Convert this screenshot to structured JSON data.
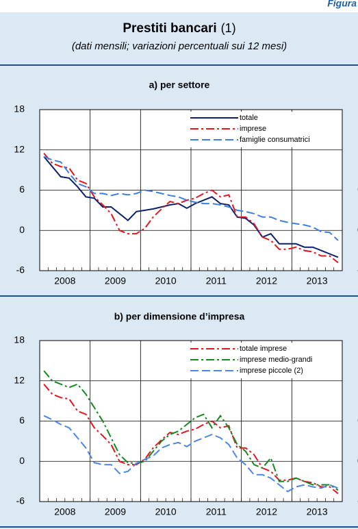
{
  "figure_label": "Figura",
  "title": "Prestiti bancari",
  "title_note": "(1)",
  "subtitle": "(dati mensili; variazioni percentuali sui 12 mesi)",
  "chart_data": [
    {
      "type": "line",
      "title": "a) per settore",
      "categories": [
        null,
        null,
        null,
        "2008",
        null,
        null,
        null,
        null,
        null,
        "2009",
        null,
        null,
        null,
        null,
        null,
        "2010",
        null,
        null,
        null,
        null,
        null,
        "2011",
        null,
        null,
        null,
        null,
        null,
        "2012",
        null,
        null,
        null,
        null,
        null,
        "2013",
        null,
        null
      ],
      "series": [
        {
          "name": "totale",
          "color": "#0b1f6e",
          "style": "solid",
          "values": [
            11,
            9.5,
            8,
            7.8,
            6.5,
            5,
            4.8,
            3.5,
            3.5,
            2.5,
            1.5,
            2.8,
            3,
            3.2,
            3.5,
            3.8,
            4,
            3.3,
            4,
            4.5,
            5,
            4,
            3.8,
            2,
            1.8,
            0.8,
            -1,
            -0.5,
            -2,
            -2,
            -2,
            -2.5,
            -2.5,
            -3,
            -3.5,
            -4
          ]
        },
        {
          "name": "imprese",
          "color": "#e3151e",
          "style": "dashdot",
          "values": [
            11.5,
            10,
            9.5,
            9.3,
            7.5,
            7,
            5,
            3.8,
            2.5,
            0,
            -0.5,
            -0.5,
            0.3,
            2,
            3.2,
            4.3,
            4,
            4.5,
            4.8,
            5.5,
            6,
            5,
            5.3,
            2,
            2,
            1,
            -1,
            -1.5,
            -2.8,
            -2.8,
            -2.5,
            -3,
            -3.2,
            -3.8,
            -3.8,
            -4.8
          ]
        },
        {
          "name": "famiglie consumatrici",
          "color": "#3d7fe0",
          "style": "dashed",
          "values": [
            11,
            10.5,
            10.2,
            8.5,
            7,
            6.5,
            5.5,
            5.5,
            5.2,
            5.5,
            5.3,
            5.5,
            6,
            5.8,
            5.5,
            5.2,
            5,
            4.5,
            4.2,
            4,
            4,
            3.8,
            3.5,
            3,
            2.8,
            2.5,
            2,
            2,
            1.5,
            1.2,
            1,
            0.8,
            0.5,
            -0.2,
            -0.3,
            -1.5
          ]
        }
      ],
      "ylim": [
        -6,
        18
      ],
      "yticks": [
        -6,
        0,
        6,
        12,
        18
      ],
      "grid": true,
      "legend": "top-right"
    },
    {
      "type": "line",
      "title": "b) per dimensione d’impresa",
      "categories": [
        null,
        null,
        null,
        "2008",
        null,
        null,
        null,
        null,
        null,
        "2009",
        null,
        null,
        null,
        null,
        null,
        "2010",
        null,
        null,
        null,
        null,
        null,
        "2011",
        null,
        null,
        null,
        null,
        null,
        "2012",
        null,
        null,
        null,
        null,
        null,
        "2013",
        null,
        null
      ],
      "series": [
        {
          "name": "totale imprese",
          "color": "#e3151e",
          "style": "dashdot",
          "values": [
            11.5,
            10,
            9.5,
            9.3,
            7.5,
            7,
            5,
            3.8,
            2.5,
            0,
            -0.5,
            -0.5,
            0.3,
            2,
            3.2,
            4.3,
            4,
            4.5,
            4.8,
            5.5,
            6,
            5,
            5.3,
            2,
            2,
            1,
            -1,
            -1.5,
            -2.8,
            -2.8,
            -2.5,
            -3,
            -3.2,
            -3.8,
            -3.8,
            -4.8
          ]
        },
        {
          "name": "imprese medio-grandi",
          "color": "#14871e",
          "style": "dashdot",
          "values": [
            13.5,
            12,
            11.5,
            11,
            11.5,
            10,
            8,
            6,
            3.5,
            1,
            -0.2,
            -0.3,
            0,
            1.5,
            3,
            4,
            4.5,
            5.5,
            6.5,
            7,
            5,
            6.8,
            5,
            2.5,
            1.5,
            -0.5,
            -1,
            0.5,
            -3,
            -3,
            -2.5,
            -3,
            -3.5,
            -3.5,
            -3.5,
            -4.3
          ]
        },
        {
          "name": "imprese piccole (2)",
          "color": "#4a86e8",
          "style": "dashed",
          "values": [
            6.8,
            6.2,
            5.5,
            5,
            3.5,
            2,
            -0.2,
            -0.5,
            -0.5,
            -1.8,
            -1.5,
            -0.3,
            0.3,
            0.8,
            2,
            2.5,
            2.8,
            2.2,
            3,
            3.5,
            4,
            3.5,
            2.5,
            0.5,
            -0.5,
            -2,
            -2,
            -2.5,
            -3.5,
            -4.5,
            -3.8,
            -3.5,
            -3.8,
            -4,
            -3.5,
            -4
          ]
        }
      ],
      "ylim": [
        -6,
        18
      ],
      "yticks": [
        -6,
        0,
        6,
        12,
        18
      ],
      "grid": true,
      "legend": "top-right"
    }
  ]
}
